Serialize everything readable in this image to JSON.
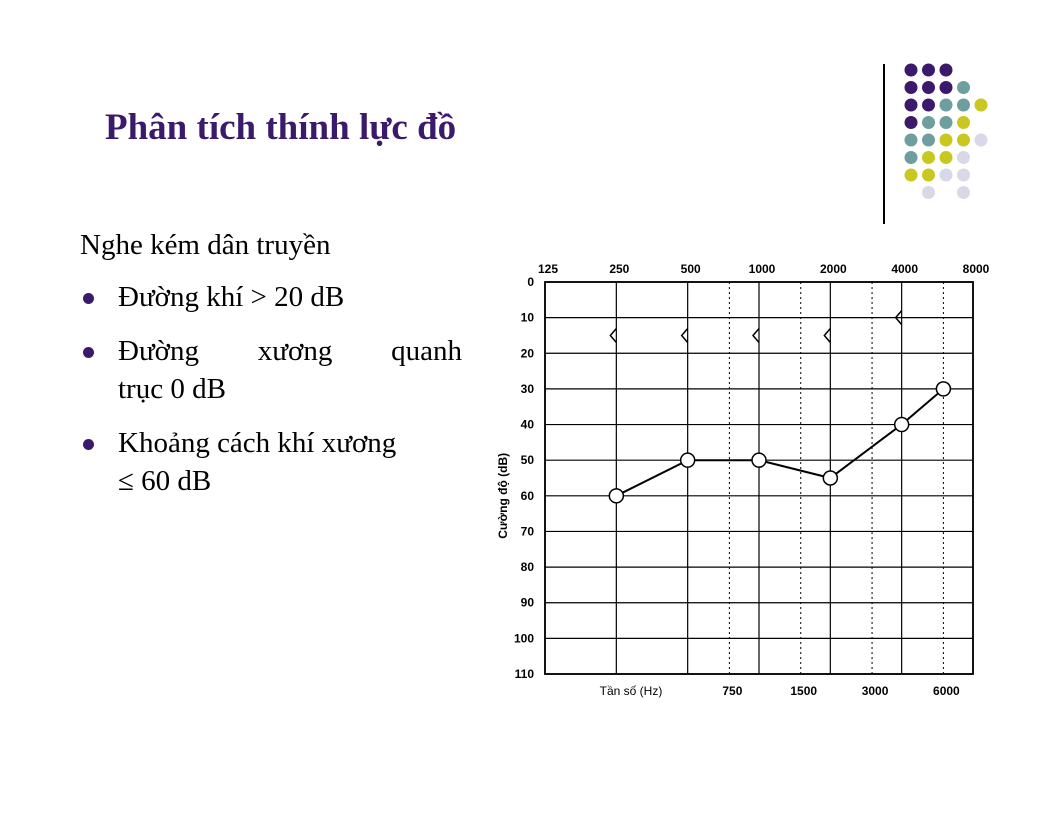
{
  "slide": {
    "title": "Phân tích thính lực đồ",
    "heading": "Nghe kém dân truyền",
    "bullets": [
      {
        "lines": [
          "Đường khí > 20 dB"
        ]
      },
      {
        "lines": [
          "Đường xương quanh",
          "trục 0 dB"
        ]
      },
      {
        "lines": [
          "Khoảng cách khí xương",
          "≤ 60 dB"
        ]
      }
    ]
  },
  "decor": {
    "dot_colors": {
      "purple": "#3b1a6b",
      "teal": "#6e9e9e",
      "olive": "#c8c820",
      "lavender": "#d8d8e8"
    },
    "dot_rows": [
      [
        "purple",
        "purple",
        "purple",
        "",
        ""
      ],
      [
        "purple",
        "purple",
        "purple",
        "teal",
        ""
      ],
      [
        "purple",
        "purple",
        "teal",
        "teal",
        "olive"
      ],
      [
        "purple",
        "teal",
        "teal",
        "olive",
        ""
      ],
      [
        "teal",
        "teal",
        "olive",
        "olive",
        "lavender"
      ],
      [
        "teal",
        "olive",
        "olive",
        "lavender",
        ""
      ],
      [
        "olive",
        "olive",
        "lavender",
        "lavender",
        ""
      ],
      [
        "",
        "lavender",
        "",
        "lavender",
        ""
      ]
    ]
  },
  "chart_data": {
    "type": "line",
    "ylabel": "Cường độ (dB)",
    "xlabel": "Tần số (Hz)",
    "top_ticks": [
      "125",
      "250",
      "500",
      "1000",
      "2000",
      "4000",
      "8000"
    ],
    "bottom_ticks": [
      "750",
      "1500",
      "3000",
      "6000"
    ],
    "ylim": [
      0,
      110
    ],
    "yticks": [
      0,
      10,
      20,
      30,
      40,
      50,
      60,
      70,
      80,
      90,
      100,
      110
    ],
    "grid": true,
    "series": [
      {
        "marker": "circle",
        "x": [
          250,
          500,
          1000,
          2000,
          4000,
          6000
        ],
        "y": [
          60,
          50,
          50,
          55,
          40,
          30
        ]
      },
      {
        "marker": "bracket",
        "x": [
          250,
          500,
          1000,
          2000,
          4000
        ],
        "y": [
          15,
          15,
          15,
          15,
          10
        ]
      }
    ]
  }
}
